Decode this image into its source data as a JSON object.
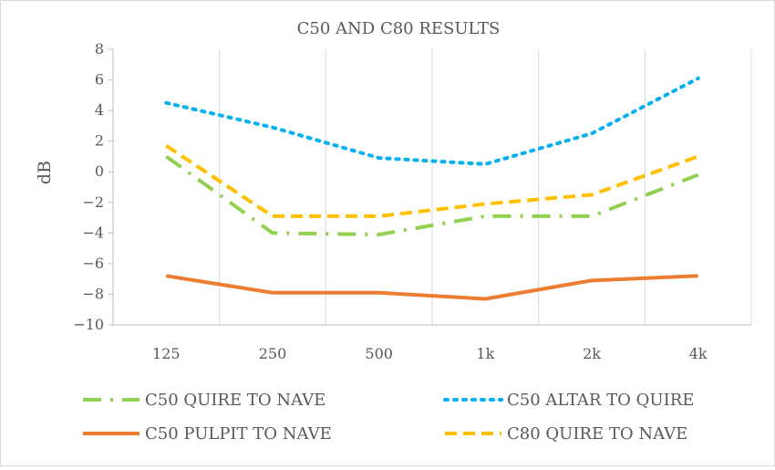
{
  "chart_data": {
    "type": "line",
    "title": "C50 AND C80 RESULTS",
    "xlabel": "",
    "ylabel": "dB",
    "categories": [
      "125",
      "250",
      "500",
      "1k",
      "2k",
      "4k"
    ],
    "ylim": [
      -10,
      8
    ],
    "yticks": [
      8,
      6,
      4,
      2,
      0,
      -2,
      -4,
      -6,
      -8,
      -10
    ],
    "ytick_labels": [
      "8",
      "6",
      "4",
      "2",
      "0",
      "−2",
      "−4",
      "−6",
      "−8",
      "−10"
    ],
    "grid": "vertical",
    "legend_position": "bottom",
    "series": [
      {
        "name": "C50 QUIRE TO NAVE",
        "values": [
          1.0,
          -4.0,
          -4.1,
          -2.9,
          -2.9,
          -0.2
        ],
        "color": "#92d050",
        "dash": "long-dash-dot"
      },
      {
        "name": "C50 ALTAR TO QUIRE",
        "values": [
          4.5,
          2.9,
          0.9,
          0.5,
          2.5,
          6.1
        ],
        "color": "#00b0f0",
        "dash": "dotted"
      },
      {
        "name": "C50 PULPIT TO NAVE",
        "values": [
          -6.8,
          -7.9,
          -7.9,
          -8.3,
          -7.1,
          -6.8
        ],
        "color": "#ed7d31",
        "dash": "solid"
      },
      {
        "name": "C80 QUIRE TO NAVE",
        "values": [
          1.7,
          -2.9,
          -2.9,
          -2.1,
          -1.5,
          1.0
        ],
        "color": "#ffc000",
        "dash": "dashed"
      }
    ]
  }
}
